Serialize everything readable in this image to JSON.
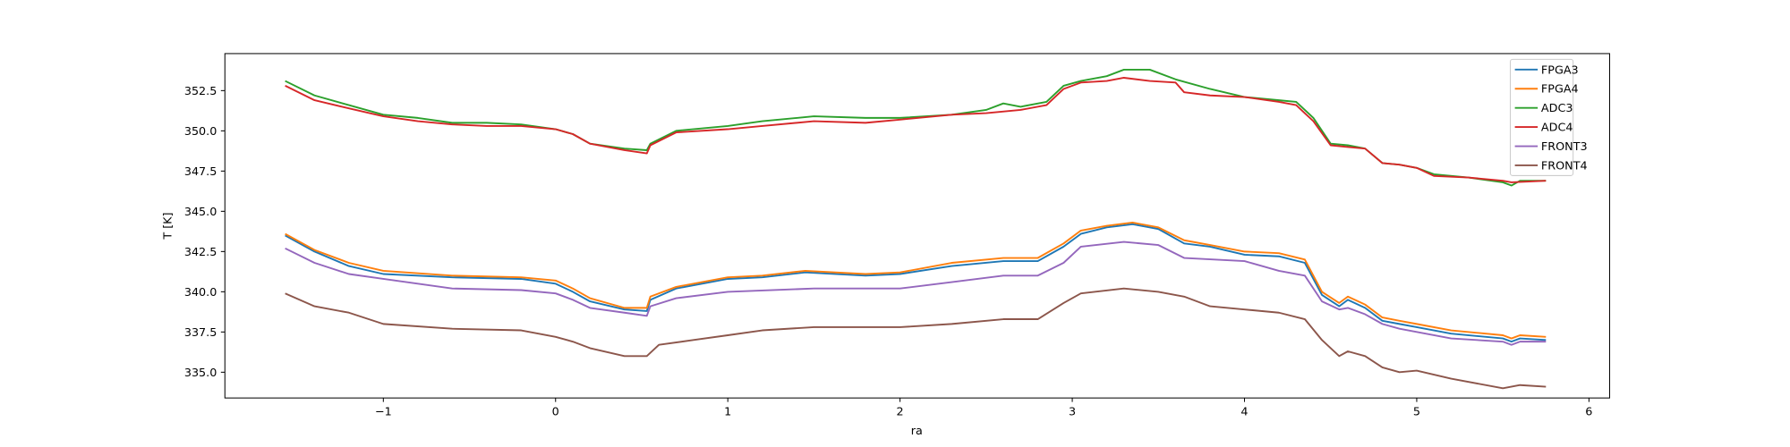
{
  "chart_data": {
    "type": "line",
    "title": "",
    "xlabel": "ra",
    "ylabel": "T [K]",
    "xlim": [
      -1.92,
      6.12
    ],
    "ylim": [
      333.4,
      354.8
    ],
    "xticks": [
      -1,
      0,
      1,
      2,
      3,
      4,
      5,
      6
    ],
    "xtick_labels": [
      "−1",
      "0",
      "1",
      "2",
      "3",
      "4",
      "5",
      "6"
    ],
    "yticks": [
      335.0,
      337.5,
      340.0,
      342.5,
      345.0,
      347.5,
      350.0,
      352.5
    ],
    "ytick_labels": [
      "335.0",
      "337.5",
      "340.0",
      "342.5",
      "345.0",
      "347.5",
      "350.0",
      "352.5"
    ],
    "grid": false,
    "legend_position": "top-right",
    "series": [
      {
        "name": "FPGA3",
        "color": "#1f77b4",
        "points": [
          [
            -1.57,
            343.5
          ],
          [
            -1.4,
            342.5
          ],
          [
            -1.2,
            341.6
          ],
          [
            -1.0,
            341.1
          ],
          [
            -0.6,
            340.9
          ],
          [
            -0.2,
            340.8
          ],
          [
            0,
            340.5
          ],
          [
            0.1,
            340.0
          ],
          [
            0.2,
            339.4
          ],
          [
            0.4,
            338.9
          ],
          [
            0.53,
            338.8
          ],
          [
            0.55,
            339.5
          ],
          [
            0.7,
            340.2
          ],
          [
            1.0,
            340.8
          ],
          [
            1.2,
            340.9
          ],
          [
            1.45,
            341.2
          ],
          [
            1.8,
            341.0
          ],
          [
            2.0,
            341.1
          ],
          [
            2.3,
            341.6
          ],
          [
            2.6,
            341.9
          ],
          [
            2.8,
            341.9
          ],
          [
            2.95,
            342.8
          ],
          [
            3.05,
            343.6
          ],
          [
            3.2,
            344.0
          ],
          [
            3.35,
            344.2
          ],
          [
            3.5,
            343.9
          ],
          [
            3.65,
            343.0
          ],
          [
            3.8,
            342.8
          ],
          [
            4.0,
            342.3
          ],
          [
            4.2,
            342.2
          ],
          [
            4.35,
            341.8
          ],
          [
            4.45,
            339.8
          ],
          [
            4.55,
            339.1
          ],
          [
            4.6,
            339.5
          ],
          [
            4.7,
            339.0
          ],
          [
            4.8,
            338.2
          ],
          [
            4.9,
            338.0
          ],
          [
            5.0,
            337.8
          ],
          [
            5.2,
            337.4
          ],
          [
            5.5,
            337.1
          ],
          [
            5.55,
            336.9
          ],
          [
            5.6,
            337.1
          ],
          [
            5.75,
            337.0
          ]
        ]
      },
      {
        "name": "FPGA4",
        "color": "#ff7f0e",
        "points": [
          [
            -1.57,
            343.6
          ],
          [
            -1.4,
            342.6
          ],
          [
            -1.2,
            341.8
          ],
          [
            -1.0,
            341.3
          ],
          [
            -0.6,
            341.0
          ],
          [
            -0.2,
            340.9
          ],
          [
            0,
            340.7
          ],
          [
            0.1,
            340.2
          ],
          [
            0.2,
            339.6
          ],
          [
            0.4,
            339.0
          ],
          [
            0.53,
            339.0
          ],
          [
            0.55,
            339.7
          ],
          [
            0.7,
            340.3
          ],
          [
            1.0,
            340.9
          ],
          [
            1.2,
            341.0
          ],
          [
            1.45,
            341.3
          ],
          [
            1.8,
            341.1
          ],
          [
            2.0,
            341.2
          ],
          [
            2.3,
            341.8
          ],
          [
            2.6,
            342.1
          ],
          [
            2.8,
            342.1
          ],
          [
            2.95,
            343.0
          ],
          [
            3.05,
            343.8
          ],
          [
            3.2,
            344.1
          ],
          [
            3.35,
            344.3
          ],
          [
            3.5,
            344.0
          ],
          [
            3.65,
            343.2
          ],
          [
            3.8,
            342.9
          ],
          [
            4.0,
            342.5
          ],
          [
            4.2,
            342.4
          ],
          [
            4.35,
            342.0
          ],
          [
            4.45,
            340.0
          ],
          [
            4.55,
            339.3
          ],
          [
            4.6,
            339.7
          ],
          [
            4.7,
            339.2
          ],
          [
            4.8,
            338.4
          ],
          [
            4.9,
            338.2
          ],
          [
            5.0,
            338.0
          ],
          [
            5.2,
            337.6
          ],
          [
            5.5,
            337.3
          ],
          [
            5.55,
            337.1
          ],
          [
            5.6,
            337.3
          ],
          [
            5.75,
            337.2
          ]
        ]
      },
      {
        "name": "ADC3",
        "color": "#2ca02c",
        "points": [
          [
            -1.57,
            353.1
          ],
          [
            -1.4,
            352.2
          ],
          [
            -1.2,
            351.6
          ],
          [
            -1.0,
            351.0
          ],
          [
            -0.8,
            350.8
          ],
          [
            -0.6,
            350.5
          ],
          [
            -0.4,
            350.5
          ],
          [
            -0.2,
            350.4
          ],
          [
            0,
            350.1
          ],
          [
            0.1,
            349.8
          ],
          [
            0.2,
            349.2
          ],
          [
            0.4,
            348.9
          ],
          [
            0.53,
            348.8
          ],
          [
            0.55,
            349.2
          ],
          [
            0.7,
            350.0
          ],
          [
            1.0,
            350.3
          ],
          [
            1.2,
            350.6
          ],
          [
            1.5,
            350.9
          ],
          [
            1.8,
            350.8
          ],
          [
            2.0,
            350.8
          ],
          [
            2.3,
            351.0
          ],
          [
            2.5,
            351.3
          ],
          [
            2.6,
            351.7
          ],
          [
            2.7,
            351.5
          ],
          [
            2.85,
            351.8
          ],
          [
            2.95,
            352.8
          ],
          [
            3.05,
            353.1
          ],
          [
            3.2,
            353.4
          ],
          [
            3.3,
            353.8
          ],
          [
            3.45,
            353.8
          ],
          [
            3.6,
            353.2
          ],
          [
            3.8,
            352.6
          ],
          [
            4.0,
            352.1
          ],
          [
            4.2,
            351.9
          ],
          [
            4.3,
            351.8
          ],
          [
            4.4,
            350.8
          ],
          [
            4.5,
            349.2
          ],
          [
            4.6,
            349.1
          ],
          [
            4.7,
            348.9
          ],
          [
            4.8,
            348.0
          ],
          [
            4.9,
            347.9
          ],
          [
            5.0,
            347.7
          ],
          [
            5.1,
            347.3
          ],
          [
            5.3,
            347.1
          ],
          [
            5.5,
            346.8
          ],
          [
            5.55,
            346.6
          ],
          [
            5.6,
            346.9
          ],
          [
            5.75,
            346.9
          ]
        ]
      },
      {
        "name": "ADC4",
        "color": "#d62728",
        "points": [
          [
            -1.57,
            352.8
          ],
          [
            -1.4,
            351.9
          ],
          [
            -1.2,
            351.4
          ],
          [
            -1.0,
            350.9
          ],
          [
            -0.8,
            350.6
          ],
          [
            -0.6,
            350.4
          ],
          [
            -0.4,
            350.3
          ],
          [
            -0.2,
            350.3
          ],
          [
            0,
            350.1
          ],
          [
            0.1,
            349.8
          ],
          [
            0.2,
            349.2
          ],
          [
            0.4,
            348.8
          ],
          [
            0.53,
            348.6
          ],
          [
            0.55,
            349.1
          ],
          [
            0.7,
            349.9
          ],
          [
            1.0,
            350.1
          ],
          [
            1.2,
            350.3
          ],
          [
            1.5,
            350.6
          ],
          [
            1.8,
            350.5
          ],
          [
            2.0,
            350.7
          ],
          [
            2.3,
            351.0
          ],
          [
            2.5,
            351.1
          ],
          [
            2.7,
            351.3
          ],
          [
            2.85,
            351.6
          ],
          [
            2.95,
            352.6
          ],
          [
            3.05,
            353.0
          ],
          [
            3.2,
            353.1
          ],
          [
            3.3,
            353.3
          ],
          [
            3.45,
            353.1
          ],
          [
            3.6,
            353.0
          ],
          [
            3.65,
            352.4
          ],
          [
            3.8,
            352.2
          ],
          [
            4.0,
            352.1
          ],
          [
            4.2,
            351.8
          ],
          [
            4.3,
            351.6
          ],
          [
            4.4,
            350.6
          ],
          [
            4.5,
            349.1
          ],
          [
            4.6,
            349.0
          ],
          [
            4.7,
            348.9
          ],
          [
            4.8,
            348.0
          ],
          [
            4.9,
            347.9
          ],
          [
            5.0,
            347.7
          ],
          [
            5.1,
            347.2
          ],
          [
            5.3,
            347.1
          ],
          [
            5.5,
            346.9
          ],
          [
            5.55,
            346.8
          ],
          [
            5.75,
            346.9
          ]
        ]
      },
      {
        "name": "FRONT3",
        "color": "#9467bd",
        "points": [
          [
            -1.57,
            342.7
          ],
          [
            -1.4,
            341.8
          ],
          [
            -1.2,
            341.1
          ],
          [
            -1.0,
            340.8
          ],
          [
            -0.6,
            340.2
          ],
          [
            -0.2,
            340.1
          ],
          [
            0,
            339.9
          ],
          [
            0.1,
            339.5
          ],
          [
            0.2,
            339.0
          ],
          [
            0.4,
            338.7
          ],
          [
            0.53,
            338.5
          ],
          [
            0.55,
            339.1
          ],
          [
            0.7,
            339.6
          ],
          [
            1.0,
            340.0
          ],
          [
            1.5,
            340.2
          ],
          [
            2.0,
            340.2
          ],
          [
            2.3,
            340.6
          ],
          [
            2.6,
            341.0
          ],
          [
            2.8,
            341.0
          ],
          [
            2.95,
            341.8
          ],
          [
            3.05,
            342.8
          ],
          [
            3.3,
            343.1
          ],
          [
            3.5,
            342.9
          ],
          [
            3.65,
            342.1
          ],
          [
            4.0,
            341.9
          ],
          [
            4.2,
            341.3
          ],
          [
            4.35,
            341.0
          ],
          [
            4.45,
            339.4
          ],
          [
            4.55,
            338.9
          ],
          [
            4.6,
            339.0
          ],
          [
            4.7,
            338.6
          ],
          [
            4.8,
            338.0
          ],
          [
            4.9,
            337.7
          ],
          [
            5.0,
            337.5
          ],
          [
            5.2,
            337.1
          ],
          [
            5.5,
            336.9
          ],
          [
            5.55,
            336.7
          ],
          [
            5.6,
            336.9
          ],
          [
            5.75,
            336.9
          ]
        ]
      },
      {
        "name": "FRONT4",
        "color": "#8c564b",
        "points": [
          [
            -1.57,
            339.9
          ],
          [
            -1.4,
            339.1
          ],
          [
            -1.2,
            338.7
          ],
          [
            -1.0,
            338.0
          ],
          [
            -0.6,
            337.7
          ],
          [
            -0.2,
            337.6
          ],
          [
            0,
            337.2
          ],
          [
            0.1,
            336.9
          ],
          [
            0.2,
            336.5
          ],
          [
            0.4,
            336.0
          ],
          [
            0.53,
            336.0
          ],
          [
            0.6,
            336.7
          ],
          [
            0.8,
            337.0
          ],
          [
            1.0,
            337.3
          ],
          [
            1.2,
            337.6
          ],
          [
            1.5,
            337.8
          ],
          [
            2.0,
            337.8
          ],
          [
            2.3,
            338.0
          ],
          [
            2.6,
            338.3
          ],
          [
            2.8,
            338.3
          ],
          [
            2.95,
            339.3
          ],
          [
            3.05,
            339.9
          ],
          [
            3.3,
            340.2
          ],
          [
            3.5,
            340.0
          ],
          [
            3.65,
            339.7
          ],
          [
            3.8,
            339.1
          ],
          [
            4.0,
            338.9
          ],
          [
            4.2,
            338.7
          ],
          [
            4.35,
            338.3
          ],
          [
            4.45,
            337.0
          ],
          [
            4.55,
            336.0
          ],
          [
            4.6,
            336.3
          ],
          [
            4.7,
            336.0
          ],
          [
            4.8,
            335.3
          ],
          [
            4.9,
            335.0
          ],
          [
            5.0,
            335.1
          ],
          [
            5.2,
            334.6
          ],
          [
            5.5,
            334.0
          ],
          [
            5.6,
            334.2
          ],
          [
            5.75,
            334.1
          ]
        ]
      }
    ]
  }
}
